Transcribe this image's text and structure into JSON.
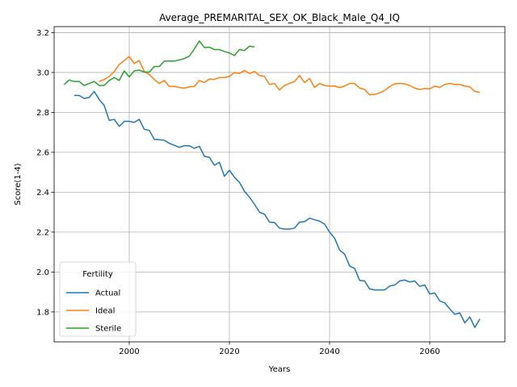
{
  "chart_data": {
    "type": "line",
    "title": "Average_PREMARITAL_SEX_OK_Black_Male_Q4_IQ",
    "xlabel": "Years",
    "ylabel": "Score(1-4)",
    "xlim": [
      1985,
      2075
    ],
    "ylim": [
      1.65,
      3.23
    ],
    "xticks": [
      2000,
      2020,
      2040,
      2060
    ],
    "yticks": [
      1.8,
      2.0,
      2.2,
      2.4,
      2.6,
      2.8,
      3.0,
      3.2
    ],
    "grid": true,
    "legend": {
      "title": "Fertility",
      "placement": "lower-left"
    },
    "series": [
      {
        "name": "Actual",
        "color": "#1f77b4",
        "x": [
          1989,
          1990,
          1991,
          1992,
          1993,
          1994,
          1995,
          1996,
          1997,
          1998,
          1999,
          2000,
          2001,
          2002,
          2003,
          2004,
          2005,
          2006,
          2007,
          2008,
          2009,
          2010,
          2011,
          2012,
          2013,
          2014,
          2015,
          2016,
          2017,
          2018,
          2019,
          2020,
          2021,
          2022,
          2023,
          2024,
          2025,
          2026,
          2027,
          2028,
          2029,
          2030,
          2031,
          2032,
          2033,
          2034,
          2035,
          2036,
          2037,
          2038,
          2039,
          2040,
          2041,
          2042,
          2043,
          2044,
          2045,
          2046,
          2047,
          2048,
          2049,
          2050,
          2051,
          2052,
          2053,
          2054,
          2055,
          2056,
          2057,
          2058,
          2059,
          2060,
          2061,
          2062,
          2063,
          2064,
          2065,
          2066,
          2067,
          2068,
          2069,
          2070
        ],
        "y": [
          2.885,
          2.885,
          2.87,
          2.875,
          2.905,
          2.865,
          2.835,
          2.76,
          2.765,
          2.73,
          2.755,
          2.755,
          2.75,
          2.765,
          2.715,
          2.71,
          2.665,
          2.663,
          2.66,
          2.645,
          2.635,
          2.625,
          2.633,
          2.633,
          2.62,
          2.63,
          2.58,
          2.575,
          2.535,
          2.55,
          2.48,
          2.51,
          2.475,
          2.45,
          2.405,
          2.375,
          2.34,
          2.3,
          2.29,
          2.25,
          2.248,
          2.22,
          2.215,
          2.215,
          2.22,
          2.25,
          2.252,
          2.27,
          2.262,
          2.255,
          2.24,
          2.2,
          2.17,
          2.11,
          2.09,
          2.03,
          2.018,
          1.958,
          1.955,
          1.915,
          1.91,
          1.91,
          1.91,
          1.93,
          1.935,
          1.955,
          1.96,
          1.95,
          1.955,
          1.928,
          1.935,
          1.89,
          1.895,
          1.855,
          1.845,
          1.815,
          1.788,
          1.795,
          1.745,
          1.775,
          1.722,
          1.765
        ]
      },
      {
        "name": "Ideal",
        "color": "#ff7f0e",
        "x": [
          1994,
          1995,
          1996,
          1997,
          1998,
          1999,
          2000,
          2001,
          2002,
          2003,
          2004,
          2005,
          2006,
          2007,
          2008,
          2009,
          2010,
          2011,
          2012,
          2013,
          2014,
          2015,
          2016,
          2017,
          2018,
          2019,
          2020,
          2021,
          2022,
          2023,
          2024,
          2025,
          2026,
          2027,
          2028,
          2029,
          2030,
          2031,
          2032,
          2033,
          2034,
          2035,
          2036,
          2037,
          2038,
          2039,
          2040,
          2041,
          2042,
          2043,
          2044,
          2045,
          2046,
          2047,
          2048,
          2049,
          2050,
          2051,
          2052,
          2053,
          2054,
          2055,
          2056,
          2057,
          2058,
          2059,
          2060,
          2061,
          2062,
          2063,
          2064,
          2065,
          2066,
          2067,
          2068,
          2069,
          2070
        ],
        "y": [
          2.955,
          2.965,
          2.98,
          3.005,
          3.04,
          3.06,
          3.08,
          3.045,
          3.06,
          3.005,
          2.99,
          2.965,
          2.945,
          2.96,
          2.93,
          2.93,
          2.925,
          2.922,
          2.928,
          2.93,
          2.96,
          2.95,
          2.968,
          2.965,
          2.975,
          2.975,
          2.98,
          3.0,
          2.995,
          3.01,
          2.995,
          3.005,
          2.985,
          2.98,
          2.94,
          2.945,
          2.912,
          2.935,
          2.945,
          2.955,
          2.985,
          2.95,
          2.97,
          2.925,
          2.945,
          2.935,
          2.932,
          2.932,
          2.925,
          2.932,
          2.945,
          2.945,
          2.922,
          2.915,
          2.888,
          2.89,
          2.898,
          2.91,
          2.93,
          2.943,
          2.945,
          2.943,
          2.935,
          2.922,
          2.915,
          2.92,
          2.918,
          2.932,
          2.925,
          2.94,
          2.945,
          2.94,
          2.94,
          2.932,
          2.928,
          2.905,
          2.9
        ]
      },
      {
        "name": "Sterile",
        "color": "#2ca02c",
        "x": [
          1987,
          1988,
          1989,
          1990,
          1991,
          1992,
          1993,
          1994,
          1995,
          1996,
          1997,
          1998,
          1999,
          2000,
          2001,
          2002,
          2003,
          2004,
          2005,
          2006,
          2007,
          2008,
          2009,
          2010,
          2011,
          2012,
          2013,
          2014,
          2015,
          2016,
          2017,
          2018,
          2019,
          2020,
          2021,
          2022,
          2023,
          2024,
          2025
        ],
        "y": [
          2.94,
          2.962,
          2.955,
          2.955,
          2.935,
          2.945,
          2.955,
          2.935,
          2.935,
          2.96,
          2.975,
          2.96,
          3.008,
          2.978,
          3.008,
          3.012,
          3.002,
          3.002,
          3.03,
          3.03,
          3.057,
          3.057,
          3.057,
          3.063,
          3.07,
          3.082,
          3.118,
          3.158,
          3.125,
          3.127,
          3.115,
          3.115,
          3.105,
          3.098,
          3.085,
          3.115,
          3.11,
          3.132,
          3.128
        ]
      }
    ]
  }
}
